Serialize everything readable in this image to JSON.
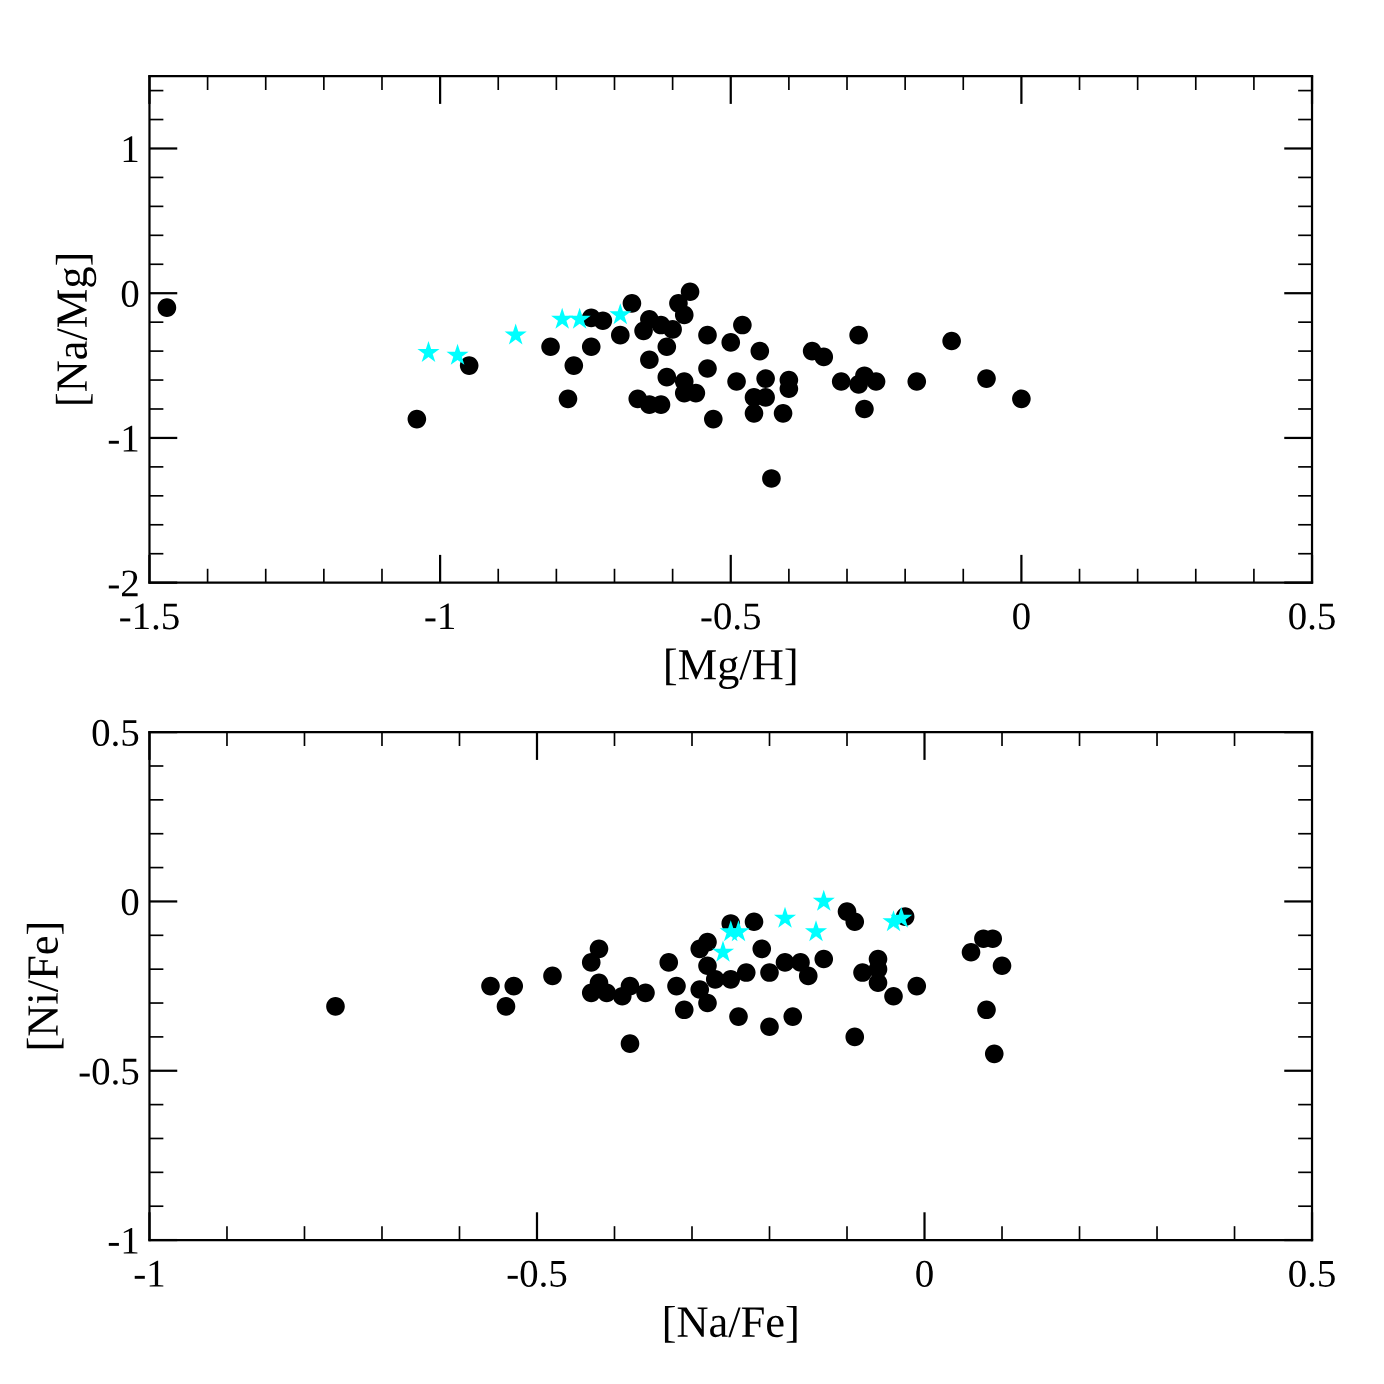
{
  "chart_data": [
    {
      "type": "scatter",
      "xlabel": "[Mg/H]",
      "ylabel": "[Na/Mg]",
      "xlim": [
        -1.5,
        0.5
      ],
      "ylim": [
        -2,
        1.5
      ],
      "xticks": [
        -1.5,
        -1,
        -0.5,
        0,
        0.5
      ],
      "yticks": [
        -2,
        -1,
        0,
        1
      ],
      "grid": false,
      "legend": false,
      "series": [
        {
          "color": "#000000",
          "marker": "circle",
          "x": [
            -1.47,
            -1.04,
            -0.95,
            -0.81,
            -0.78,
            -0.77,
            -0.74,
            -0.74,
            -0.72,
            -0.69,
            -0.67,
            -0.57,
            -0.59,
            -0.58,
            -0.64,
            -0.62,
            -0.6,
            -0.65,
            -0.61,
            -0.54,
            -0.48,
            -0.5,
            -0.45,
            -0.64,
            -0.54,
            -0.61,
            -0.58,
            -0.58,
            -0.56,
            -0.49,
            -0.44,
            -0.4,
            -0.4,
            -0.46,
            -0.44,
            -0.66,
            -0.64,
            -0.62,
            -0.53,
            -0.46,
            -0.41,
            -0.43,
            -0.36,
            -0.34,
            -0.28,
            -0.31,
            -0.28,
            -0.27,
            -0.25,
            -0.27,
            -0.18,
            -0.12,
            -0.06,
            0.0
          ],
          "values": [
            -0.1,
            -0.87,
            -0.5,
            -0.37,
            -0.73,
            -0.5,
            -0.37,
            -0.17,
            -0.19,
            -0.29,
            -0.07,
            0.01,
            -0.07,
            -0.15,
            -0.18,
            -0.22,
            -0.25,
            -0.26,
            -0.37,
            -0.29,
            -0.22,
            -0.34,
            -0.4,
            -0.46,
            -0.52,
            -0.58,
            -0.61,
            -0.69,
            -0.69,
            -0.61,
            -0.59,
            -0.6,
            -0.66,
            -0.72,
            -0.72,
            -0.73,
            -0.77,
            -0.77,
            -0.87,
            -0.83,
            -0.83,
            -1.28,
            -0.4,
            -0.44,
            -0.29,
            -0.61,
            -0.63,
            -0.57,
            -0.61,
            -0.8,
            -0.61,
            -0.33,
            -0.59,
            -0.73
          ]
        },
        {
          "color": "#00ffff",
          "marker": "star",
          "x": [
            -1.02,
            -0.97,
            -0.87,
            -0.79,
            -0.76,
            -0.69
          ],
          "values": [
            -0.41,
            -0.43,
            -0.29,
            -0.18,
            -0.18,
            -0.15
          ]
        }
      ]
    },
    {
      "type": "scatter",
      "xlabel": "[Na/Fe]",
      "ylabel": "[Ni/Fe]",
      "xlim": [
        -1,
        0.5
      ],
      "ylim": [
        -1,
        0.5
      ],
      "xticks": [
        -1,
        -0.5,
        0,
        0.5
      ],
      "yticks": [
        -1,
        -0.5,
        0,
        0.5
      ],
      "grid": false,
      "legend": false,
      "series": [
        {
          "color": "#000000",
          "marker": "circle",
          "x": [
            -0.76,
            -0.56,
            -0.53,
            -0.54,
            -0.48,
            -0.42,
            -0.43,
            -0.43,
            -0.42,
            -0.41,
            -0.39,
            -0.38,
            -0.36,
            -0.38,
            -0.33,
            -0.32,
            -0.31,
            -0.29,
            -0.28,
            -0.28,
            -0.29,
            -0.28,
            -0.27,
            -0.25,
            -0.22,
            -0.23,
            -0.21,
            -0.25,
            -0.24,
            -0.2,
            -0.18,
            -0.2,
            -0.16,
            -0.17,
            -0.15,
            -0.13,
            -0.1,
            -0.09,
            -0.09,
            -0.08,
            -0.06,
            -0.06,
            -0.06,
            -0.04,
            -0.01,
            -0.025,
            0.06,
            0.076,
            0.088,
            0.1,
            0.08,
            0.09
          ],
          "values": [
            -0.31,
            -0.25,
            -0.25,
            -0.31,
            -0.22,
            -0.14,
            -0.18,
            -0.27,
            -0.24,
            -0.27,
            -0.28,
            -0.25,
            -0.27,
            -0.42,
            -0.18,
            -0.25,
            -0.32,
            -0.14,
            -0.12,
            -0.19,
            -0.26,
            -0.3,
            -0.23,
            -0.065,
            -0.06,
            -0.21,
            -0.14,
            -0.23,
            -0.34,
            -0.21,
            -0.18,
            -0.37,
            -0.18,
            -0.34,
            -0.22,
            -0.17,
            -0.03,
            -0.06,
            -0.4,
            -0.21,
            -0.17,
            -0.2,
            -0.24,
            -0.28,
            -0.25,
            -0.045,
            -0.15,
            -0.11,
            -0.11,
            -0.19,
            -0.32,
            -0.45
          ]
        },
        {
          "color": "#00ffff",
          "marker": "star",
          "x": [
            -0.26,
            -0.25,
            -0.24,
            -0.18,
            -0.14,
            -0.13,
            -0.04,
            -0.03
          ],
          "values": [
            -0.15,
            -0.09,
            -0.09,
            -0.05,
            -0.09,
            0.0,
            -0.06,
            -0.05
          ]
        }
      ]
    }
  ]
}
